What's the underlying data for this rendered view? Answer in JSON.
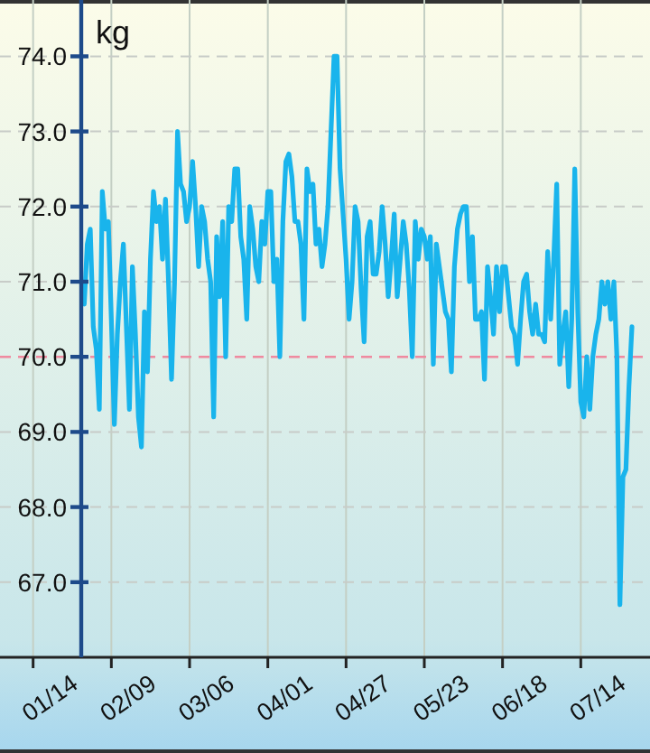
{
  "chart_data": {
    "type": "line",
    "ylabel": "kg",
    "xlim": [
      "--01-03",
      "--08-06"
    ],
    "ylim": [
      66,
      74.75
    ],
    "xticks": [
      {
        "value": "--01-14",
        "label": "01/14"
      },
      {
        "value": "--02-09",
        "label": "02/09"
      },
      {
        "value": "--03-06",
        "label": "03/06"
      },
      {
        "value": "--04-01",
        "label": "04/01"
      },
      {
        "value": "--04-27",
        "label": "04/27"
      },
      {
        "value": "--05-23",
        "label": "05/23"
      },
      {
        "value": "--06-18",
        "label": "06/18"
      },
      {
        "value": "--07-14",
        "label": "07/14"
      }
    ],
    "yticks": [
      {
        "value": 67,
        "label": "67.0"
      },
      {
        "value": 68,
        "label": "68.0"
      },
      {
        "value": 69,
        "label": "69.0"
      },
      {
        "value": 70,
        "label": "70.0"
      },
      {
        "value": 71,
        "label": "71.0"
      },
      {
        "value": 72,
        "label": "72.0"
      },
      {
        "value": 73,
        "label": "73.0"
      },
      {
        "value": 74,
        "label": "74.0"
      }
    ],
    "grid": true,
    "ref_lines": [
      {
        "axis": "y",
        "value": 70,
        "color": "#f08aa0",
        "line_style": "dashed"
      }
    ],
    "series": [
      {
        "color": "#19b4ec",
        "x": [
          "--01-31",
          "--02-01",
          "--02-02",
          "--02-03",
          "--02-04",
          "--02-05",
          "--02-06",
          "--02-07",
          "--02-08",
          "--02-09",
          "--02-10",
          "--02-11",
          "--02-12",
          "--02-13",
          "--02-14",
          "--02-15",
          "--02-16",
          "--02-17",
          "--02-18",
          "--02-19",
          "--02-20",
          "--02-21",
          "--02-22",
          "--02-23",
          "--02-24",
          "--02-25",
          "--02-26",
          "--02-27",
          "--02-28",
          "--02-29",
          "--03-01",
          "--03-02",
          "--03-03",
          "--03-04",
          "--03-05",
          "--03-06",
          "--03-07",
          "--03-08",
          "--03-09",
          "--03-10",
          "--03-11",
          "--03-12",
          "--03-13",
          "--03-14",
          "--03-15",
          "--03-16",
          "--03-17",
          "--03-18",
          "--03-19",
          "--03-20",
          "--03-21",
          "--03-22",
          "--03-23",
          "--03-24",
          "--03-25",
          "--03-26",
          "--03-27",
          "--03-28",
          "--03-29",
          "--03-30",
          "--03-31",
          "--04-01",
          "--04-02",
          "--04-03",
          "--04-04",
          "--04-05",
          "--04-06",
          "--04-07",
          "--04-08",
          "--04-09",
          "--04-10",
          "--04-11",
          "--04-12",
          "--04-13",
          "--04-14",
          "--04-15",
          "--04-16",
          "--04-17",
          "--04-18",
          "--04-19",
          "--04-20",
          "--04-21",
          "--04-22",
          "--04-23",
          "--04-24",
          "--04-25",
          "--04-26",
          "--04-27",
          "--04-28",
          "--04-29",
          "--04-30",
          "--05-01",
          "--05-02",
          "--05-03",
          "--05-04",
          "--05-05",
          "--05-06",
          "--05-07",
          "--05-08",
          "--05-09",
          "--05-10",
          "--05-11",
          "--05-12",
          "--05-13",
          "--05-14",
          "--05-15",
          "--05-16",
          "--05-17",
          "--05-18",
          "--05-19",
          "--05-20",
          "--05-21",
          "--05-22",
          "--05-23",
          "--05-24",
          "--05-25",
          "--05-26",
          "--05-27",
          "--05-28",
          "--05-29",
          "--05-30",
          "--05-31",
          "--06-01",
          "--06-02",
          "--06-03",
          "--06-04",
          "--06-05",
          "--06-06",
          "--06-07",
          "--06-08",
          "--06-09",
          "--06-10",
          "--06-11",
          "--06-12",
          "--06-13",
          "--06-14",
          "--06-15",
          "--06-16",
          "--06-17",
          "--06-18",
          "--06-19",
          "--06-20",
          "--06-21",
          "--06-22",
          "--06-23",
          "--06-24",
          "--06-25",
          "--06-26",
          "--06-27",
          "--06-28",
          "--06-29",
          "--06-30",
          "--07-01",
          "--07-02",
          "--07-03",
          "--07-04",
          "--07-05",
          "--07-06",
          "--07-07",
          "--07-08",
          "--07-09",
          "--07-10",
          "--07-11",
          "--07-12",
          "--07-13",
          "--07-14",
          "--07-15",
          "--07-16",
          "--07-17",
          "--07-18",
          "--07-19",
          "--07-20",
          "--07-21",
          "--07-22",
          "--07-23",
          "--07-24",
          "--07-25",
          "--07-26",
          "--07-27",
          "--07-28",
          "--07-29",
          "--07-30",
          "--07-31"
        ],
        "values": [
          70.7,
          71.5,
          71.7,
          70.4,
          70.1,
          69.3,
          72.2,
          71.7,
          71.8,
          70.5,
          69.1,
          70.3,
          71.0,
          71.5,
          70.4,
          69.3,
          71.2,
          70.3,
          69.2,
          68.8,
          70.6,
          69.8,
          71.3,
          72.2,
          71.8,
          72.0,
          71.3,
          72.1,
          71.0,
          69.7,
          71.0,
          73.0,
          72.3,
          72.2,
          71.8,
          72.0,
          72.6,
          72.0,
          71.2,
          72.0,
          71.8,
          71.3,
          71.0,
          69.2,
          71.6,
          70.8,
          71.8,
          70.0,
          72.0,
          71.8,
          72.5,
          72.5,
          71.6,
          71.3,
          70.5,
          72.0,
          71.7,
          71.2,
          71.0,
          71.8,
          71.5,
          72.2,
          72.2,
          71.0,
          71.3,
          70.0,
          71.8,
          72.6,
          72.7,
          72.4,
          71.8,
          71.8,
          71.5,
          70.5,
          72.5,
          72.2,
          72.3,
          71.5,
          71.7,
          71.2,
          71.5,
          72.0,
          73.0,
          74.0,
          74.0,
          72.5,
          71.9,
          71.3,
          70.5,
          71.0,
          72.0,
          71.8,
          70.9,
          70.2,
          71.6,
          71.8,
          71.1,
          71.1,
          71.4,
          72.0,
          71.5,
          70.8,
          71.3,
          71.9,
          70.8,
          71.3,
          71.8,
          71.5,
          70.9,
          70.0,
          71.8,
          71.3,
          71.7,
          71.6,
          71.3,
          71.6,
          69.9,
          71.5,
          71.2,
          70.9,
          70.6,
          70.5,
          69.8,
          71.2,
          71.7,
          71.9,
          72.0,
          72.0,
          71.0,
          71.6,
          70.5,
          70.5,
          70.6,
          69.7,
          71.2,
          70.8,
          70.3,
          71.2,
          70.6,
          71.2,
          71.2,
          70.8,
          70.4,
          70.3,
          69.9,
          70.5,
          71.0,
          71.1,
          70.6,
          70.3,
          70.7,
          70.3,
          70.3,
          70.2,
          71.4,
          70.5,
          71.3,
          72.3,
          69.9,
          70.3,
          70.6,
          69.6,
          70.5,
          72.5,
          70.6,
          69.4,
          69.2,
          70.0,
          69.3,
          70.0,
          70.3,
          70.5,
          71.0,
          70.7,
          71.0,
          70.5,
          71.0,
          70.0,
          66.7,
          68.4,
          68.5,
          69.6,
          70.4
        ]
      }
    ]
  }
}
